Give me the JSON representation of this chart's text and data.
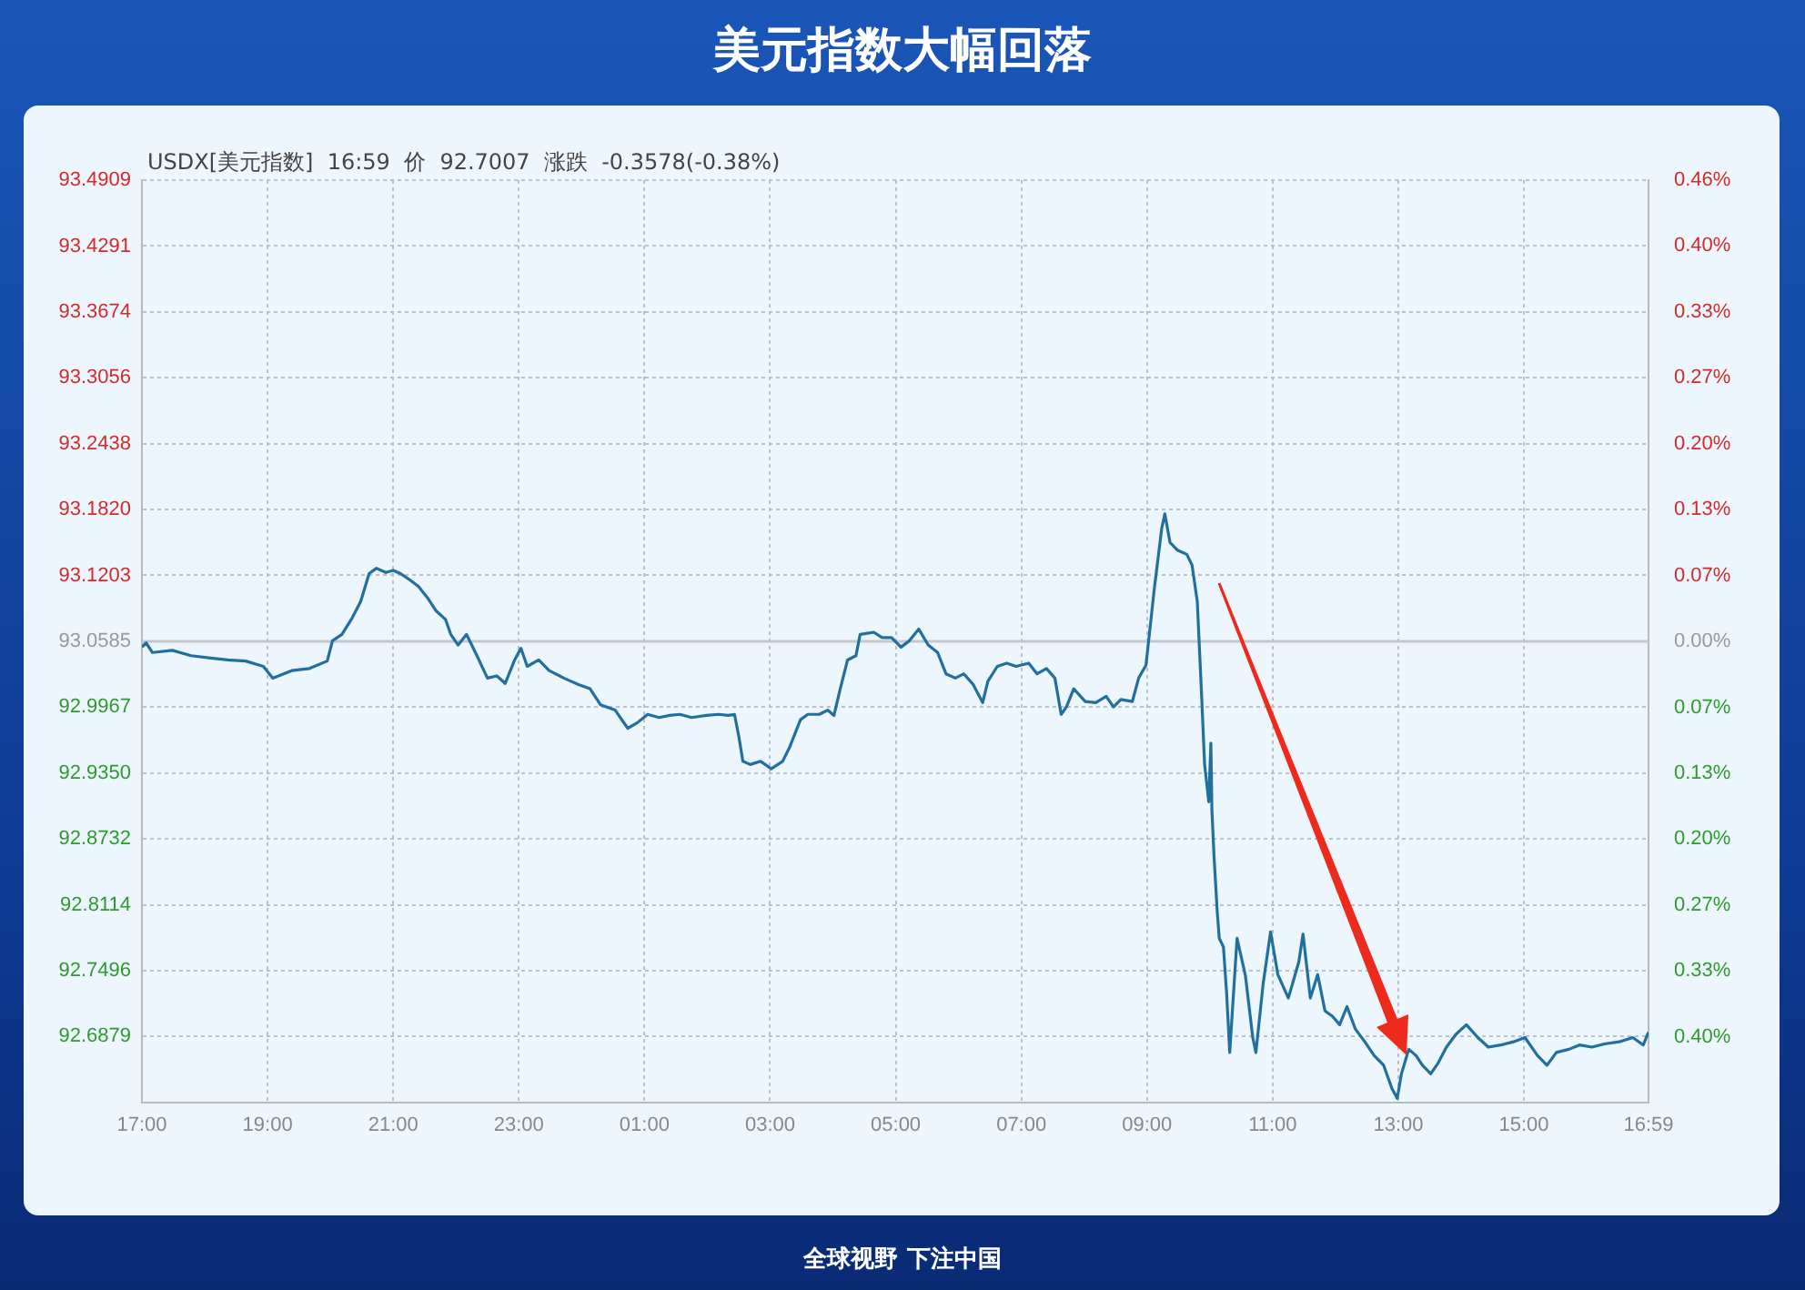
{
  "chart_data": {
    "type": "line",
    "title": "美元指数大幅回落",
    "subtitle": "USDX[美元指数]  16:59  价  92.7007  涨跌  -0.3578(-0.38%)",
    "annotations": [
      "全球视野 下注中国"
    ],
    "x": [
      "--01-04T17:00",
      "--01-04T17:04",
      "--01-04T17:10",
      "--01-04T17:29",
      "--01-04T17:47",
      "--01-04T18:04",
      "--01-04T18:22",
      "--01-04T18:39",
      "--01-04T18:56",
      "--01-04T19:05",
      "--01-04T19:23",
      "--01-04T19:40",
      "--01-04T19:57",
      "--01-04T20:02",
      "--01-04T20:11",
      "--01-04T20:20",
      "--01-04T20:29",
      "--01-04T20:37",
      "--01-04T20:44",
      "--01-04T20:53",
      "--01-04T21:00",
      "--01-04T21:07",
      "--01-04T21:16",
      "--01-04T21:24",
      "--01-04T21:33",
      "--01-04T21:41",
      "--01-04T21:50",
      "--01-04T21:55",
      "--01-04T22:02",
      "--01-04T22:10",
      "--01-04T22:20",
      "--01-04T22:30",
      "--01-04T22:39",
      "--01-04T22:47",
      "--01-04T22:56",
      "--01-04T23:02",
      "--01-04T23:08",
      "--01-04T23:19",
      "--01-04T23:29",
      "--01-04T23:43",
      "--01-04T23:57",
      "--01-05T00:08",
      "--01-05T00:18",
      "--01-05T00:32",
      "--01-05T00:44",
      "--01-05T00:53",
      "--01-05T01:03",
      "--01-05T01:14",
      "--01-05T01:24",
      "--01-05T01:34",
      "--01-05T01:45",
      "--01-05T01:59",
      "--01-05T02:11",
      "--01-05T02:20",
      "--01-05T02:26",
      "--01-05T02:30",
      "--01-05T02:34",
      "--01-05T02:41",
      "--01-05T02:51",
      "--01-05T03:01",
      "--01-05T03:12",
      "--01-05T03:19",
      "--01-05T03:29",
      "--01-05T03:36",
      "--01-05T03:47",
      "--01-05T03:55",
      "--01-05T04:01",
      "--01-05T04:07",
      "--01-05T04:14",
      "--01-05T04:22",
      "--01-05T04:26",
      "--01-05T04:39",
      "--01-05T04:47",
      "--01-05T04:56",
      "--01-05T05:05",
      "--01-05T05:13",
      "--01-05T05:22",
      "--01-05T05:31",
      "--01-05T05:40",
      "--01-05T05:48",
      "--01-05T05:57",
      "--01-05T06:05",
      "--01-05T06:14",
      "--01-05T06:23",
      "--01-05T06:28",
      "--01-05T06:37",
      "--01-05T06:46",
      "--01-05T06:55",
      "--01-05T07:07",
      "--01-05T07:15",
      "--01-05T07:24",
      "--01-05T07:32",
      "--01-05T07:38",
      "--01-05T07:43",
      "--01-05T07:50",
      "--01-05T08:01",
      "--01-05T08:11",
      "--01-05T08:21",
      "--01-05T08:28",
      "--01-05T08:35",
      "--01-05T08:46",
      "--01-05T08:52",
      "--01-05T08:59",
      "--01-05T09:07",
      "--01-05T09:14",
      "--01-05T09:17",
      "--01-05T09:22",
      "--01-05T09:29",
      "--01-05T09:38",
      "--01-05T09:43",
      "--01-05T09:48",
      "--01-05T09:52",
      "--01-05T09:55",
      "--01-05T09:59",
      "--01-05T10:01",
      "--01-05T10:02",
      "--01-05T10:04",
      "--01-05T10:07",
      "--01-05T10:09",
      "--01-05T10:13",
      "--01-05T10:16",
      "--01-05T10:19",
      "--01-05T10:26",
      "--01-05T10:34",
      "--01-05T10:41",
      "--01-05T10:44",
      "--01-05T10:51",
      "--01-05T10:58",
      "--01-05T11:05",
      "--01-05T11:15",
      "--01-05T11:25",
      "--01-05T11:29",
      "--01-05T11:36",
      "--01-05T11:43",
      "--01-05T11:50",
      "--01-05T11:57",
      "--01-05T12:04",
      "--01-05T12:11",
      "--01-05T12:19",
      "--01-05T12:28",
      "--01-05T12:37",
      "--01-05T12:46",
      "--01-05T12:54",
      "--01-05T12:59",
      "--01-05T13:03",
      "--01-05T13:10",
      "--01-05T13:17",
      "--01-05T13:23",
      "--01-05T13:31",
      "--01-05T13:38",
      "--01-05T13:46",
      "--01-05T13:55",
      "--01-05T14:05",
      "--01-05T14:16",
      "--01-05T14:26",
      "--01-05T14:38",
      "--01-05T14:50",
      "--01-05T15:01",
      "--01-05T15:13",
      "--01-05T15:22",
      "--01-05T15:31",
      "--01-05T15:43",
      "--01-05T15:53",
      "--01-05T16:05",
      "--01-05T16:17",
      "--01-05T16:31",
      "--01-05T16:44",
      "--01-05T16:54",
      "--01-05T16:59"
    ],
    "values": [
      93.053,
      93.057,
      93.048,
      93.05,
      93.045,
      93.043,
      93.041,
      93.04,
      93.035,
      93.024,
      93.031,
      93.033,
      93.04,
      93.059,
      93.065,
      93.079,
      93.096,
      93.122,
      93.127,
      93.123,
      93.125,
      93.122,
      93.116,
      93.11,
      93.099,
      93.087,
      93.079,
      93.065,
      93.055,
      93.065,
      93.045,
      93.024,
      93.026,
      93.019,
      93.041,
      93.052,
      93.035,
      93.041,
      93.031,
      93.024,
      93.018,
      93.014,
      92.999,
      92.994,
      92.977,
      92.982,
      92.99,
      92.987,
      92.989,
      92.99,
      92.987,
      92.989,
      92.99,
      92.989,
      92.99,
      92.97,
      92.946,
      92.943,
      92.946,
      92.939,
      92.946,
      92.96,
      92.985,
      92.99,
      92.99,
      92.994,
      92.989,
      93.014,
      93.041,
      93.045,
      93.065,
      93.067,
      93.062,
      93.062,
      93.053,
      93.059,
      93.07,
      93.055,
      93.048,
      93.028,
      93.024,
      93.028,
      93.018,
      93.001,
      93.021,
      93.035,
      93.038,
      93.035,
      93.038,
      93.028,
      93.033,
      93.024,
      92.99,
      92.997,
      93.014,
      93.002,
      93.001,
      93.007,
      92.997,
      93.004,
      93.002,
      93.024,
      93.036,
      93.108,
      93.164,
      93.178,
      93.151,
      93.144,
      93.14,
      93.13,
      93.096,
      93.011,
      92.943,
      92.908,
      92.963,
      92.9,
      92.857,
      92.806,
      92.78,
      92.772,
      92.729,
      92.673,
      92.78,
      92.745,
      92.687,
      92.673,
      92.738,
      92.786,
      92.746,
      92.724,
      92.758,
      92.784,
      92.724,
      92.746,
      92.712,
      92.707,
      92.699,
      92.716,
      92.695,
      92.683,
      92.67,
      92.661,
      92.639,
      92.63,
      92.653,
      92.676,
      92.67,
      92.661,
      92.653,
      92.663,
      92.678,
      92.69,
      92.699,
      92.687,
      92.678,
      92.68,
      92.683,
      92.687,
      92.67,
      92.661,
      92.673,
      92.676,
      92.68,
      92.678,
      92.681,
      92.683,
      92.687,
      92.68,
      92.692
    ],
    "color": "#216f9c",
    "xlim": [
      "--01-04T17:00",
      "--01-05T16:59"
    ],
    "xticks": [
      {
        "value": "--01-04T17:00",
        "label": "17:00"
      },
      {
        "value": "--01-04T19:00",
        "label": "19:00"
      },
      {
        "value": "--01-04T21:00",
        "label": "21:00"
      },
      {
        "value": "--01-04T23:00",
        "label": "23:00"
      },
      {
        "value": "--01-05T01:00",
        "label": "01:00"
      },
      {
        "value": "--01-05T03:00",
        "label": "03:00"
      },
      {
        "value": "--01-05T05:00",
        "label": "05:00"
      },
      {
        "value": "--01-05T07:00",
        "label": "07:00"
      },
      {
        "value": "--01-05T09:00",
        "label": "09:00"
      },
      {
        "value": "--01-05T11:00",
        "label": "11:00"
      },
      {
        "value": "--01-05T13:00",
        "label": "13:00"
      },
      {
        "value": "--01-05T15:00",
        "label": "15:00"
      },
      {
        "value": "--01-05T16:59",
        "label": "16:59"
      }
    ],
    "ylim": [
      92.626,
      93.4909
    ],
    "yticks": [
      93.4909,
      93.4291,
      93.3674,
      93.3056,
      93.2438,
      {
        "value": 93.182,
        "label": "93.1820"
      },
      93.1203,
      93.0585,
      92.9967,
      {
        "value": 92.935,
        "label": "92.9350"
      },
      92.8732,
      92.8114,
      92.7496,
      92.6879
    ],
    "y2lim": [
      -0.4648,
      0.4649
    ],
    "y2ticks": [
      {
        "value": 0.4649,
        "label": "0.46%"
      },
      {
        "value": 0.3985,
        "label": "0.40%"
      },
      {
        "value": 0.3321,
        "label": "0.33%"
      },
      {
        "value": 0.2656,
        "label": "0.27%"
      },
      {
        "value": 0.1992,
        "label": "0.20%"
      },
      {
        "value": 0.1328,
        "label": "0.13%"
      },
      {
        "value": 0.0664,
        "label": "0.07%"
      },
      {
        "value": 0,
        "label": "0.00%"
      },
      {
        "value": -0.0664,
        "label": "0.07%"
      },
      {
        "value": -0.1328,
        "label": "0.13%"
      },
      {
        "value": -0.1992,
        "label": "0.20%"
      },
      {
        "value": -0.2656,
        "label": "0.27%"
      },
      {
        "value": -0.3321,
        "label": "0.33%"
      },
      {
        "value": -0.3985,
        "label": "0.40%"
      }
    ],
    "ref_lines": [
      {
        "axis": "y",
        "value": 93.0585,
        "color": "#c4c8cc"
      }
    ],
    "grid": true
  }
}
